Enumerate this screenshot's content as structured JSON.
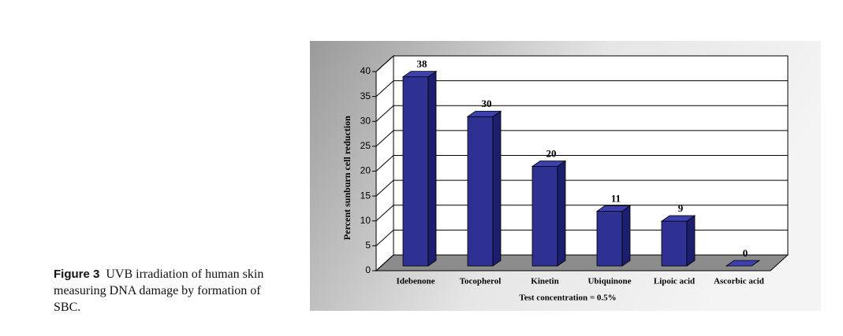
{
  "chart_data": {
    "type": "bar3d",
    "y_label": "Percent sunburn cell reduction",
    "x_label": "Test concentration = 0.5%",
    "categories": [
      "Idebenone",
      "Tocopherol",
      "Kinetin",
      "Ubiquinone",
      "Lipoic acid",
      "Ascorbic acid"
    ],
    "values": [
      38,
      30,
      20,
      11,
      9,
      0
    ],
    "color": "#2e3192",
    "ylim": [
      0,
      40
    ],
    "yticks": [
      0,
      5,
      10,
      15,
      20,
      25,
      30,
      35,
      40
    ],
    "grid": true
  },
  "caption": {
    "label": "Figure 3",
    "text": "UVB irradiation of human skin measuring DNA damage by formation of SBC."
  }
}
